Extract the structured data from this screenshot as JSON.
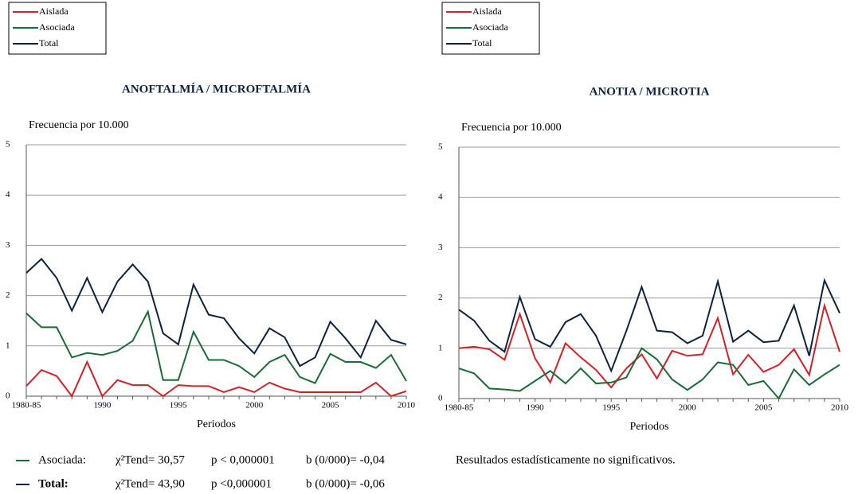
{
  "chart_data": [
    {
      "type": "line",
      "title": "ANOFTALMÍA / MICROFTALMÍA",
      "y_label": "Frecuencia por 10.000",
      "x_label": "Periodos",
      "categories": [
        "1980-85",
        null,
        null,
        null,
        null,
        "1990",
        null,
        null,
        null,
        null,
        "1995",
        null,
        null,
        null,
        null,
        "2000",
        null,
        null,
        null,
        null,
        "2005",
        null,
        null,
        null,
        null,
        "2010"
      ],
      "series": [
        {
          "name": "Aislada",
          "color": "#d42027",
          "values": [
            0.2,
            0.52,
            0.4,
            0,
            0.68,
            0,
            0.32,
            0.22,
            0.22,
            0,
            0.22,
            0.2,
            0.2,
            0.08,
            0.18,
            0.08,
            0.27,
            0.15,
            0.08,
            0.08,
            0.08,
            0.08,
            0.08,
            0.27,
            0,
            0.1
          ]
        },
        {
          "name": "Asociada",
          "color": "#1a6b35",
          "values": [
            1.65,
            1.37,
            1.37,
            0.77,
            0.86,
            0.82,
            0.9,
            1.1,
            1.68,
            0.32,
            0.32,
            1.28,
            0.72,
            0.72,
            0.6,
            0.38,
            0.68,
            0.82,
            0.38,
            0.26,
            0.84,
            0.68,
            0.68,
            0.56,
            0.82,
            0.3
          ]
        },
        {
          "name": "Total",
          "color": "#0d2240",
          "values": [
            2.45,
            2.73,
            2.35,
            1.7,
            2.35,
            1.67,
            2.28,
            2.62,
            2.28,
            1.25,
            1.03,
            2.22,
            1.62,
            1.55,
            1.15,
            0.85,
            1.35,
            1.17,
            0.6,
            0.77,
            1.48,
            1.15,
            0.77,
            1.5,
            1.12,
            1.03
          ]
        }
      ],
      "ylim": [
        0,
        5
      ],
      "yticks": [
        0,
        1,
        2,
        3,
        4,
        5
      ],
      "grid": true,
      "legend": "top-left",
      "notes": [
        {
          "color": "#1a6b35",
          "name": "Asociada:",
          "stat": "χ²Tend= 30,57",
          "p": "p < 0,000001",
          "b": "b (0/000)= -0,04"
        },
        {
          "color": "#0d2240",
          "name": "Total:",
          "stat": "χ²Tend= 43,90",
          "p": "p <0,000001",
          "b": "b (0/000)= -0,06"
        }
      ]
    },
    {
      "type": "line",
      "title": "ANOTIA / MICROTIA",
      "y_label": "Frecuencia por 10.000",
      "x_label": "Periodos",
      "categories": [
        "1980-85",
        null,
        null,
        null,
        null,
        "1990",
        null,
        null,
        null,
        null,
        "1995",
        null,
        null,
        null,
        null,
        "2000",
        null,
        null,
        null,
        null,
        "2005",
        null,
        null,
        null,
        null,
        "2010"
      ],
      "series": [
        {
          "name": "Aislada",
          "color": "#d42027",
          "values": [
            1.0,
            1.03,
            0.98,
            0.77,
            1.68,
            0.8,
            0.32,
            1.1,
            0.82,
            0.57,
            0.22,
            0.6,
            0.88,
            0.4,
            0.95,
            0.85,
            0.88,
            1.6,
            0.48,
            0.87,
            0.53,
            0.67,
            0.98,
            0.47,
            1.85,
            0.93
          ]
        },
        {
          "name": "Asociada",
          "color": "#1a6b35",
          "values": [
            0.6,
            0.5,
            0.2,
            0.18,
            0.15,
            0.35,
            0.55,
            0.3,
            0.6,
            0.3,
            0.32,
            0.42,
            1.0,
            0.78,
            0.38,
            0.17,
            0.38,
            0.72,
            0.67,
            0.27,
            0.35,
            0,
            0.58,
            0.27,
            0.48,
            0.67
          ]
        },
        {
          "name": "Total",
          "color": "#0d2240",
          "values": [
            1.77,
            1.55,
            1.15,
            0.93,
            2.02,
            1.18,
            1.03,
            1.52,
            1.68,
            1.25,
            0.55,
            1.35,
            2.22,
            1.35,
            1.32,
            1.1,
            1.25,
            2.33,
            1.13,
            1.35,
            1.12,
            1.15,
            1.85,
            0.85,
            2.35,
            1.7
          ]
        }
      ],
      "ylim": [
        0,
        5
      ],
      "yticks": [
        0,
        1,
        2,
        3,
        4,
        5
      ],
      "grid": true,
      "legend": "top-left",
      "notes": [
        {
          "text": "Resultados estadísticamente no significativos."
        }
      ]
    }
  ]
}
